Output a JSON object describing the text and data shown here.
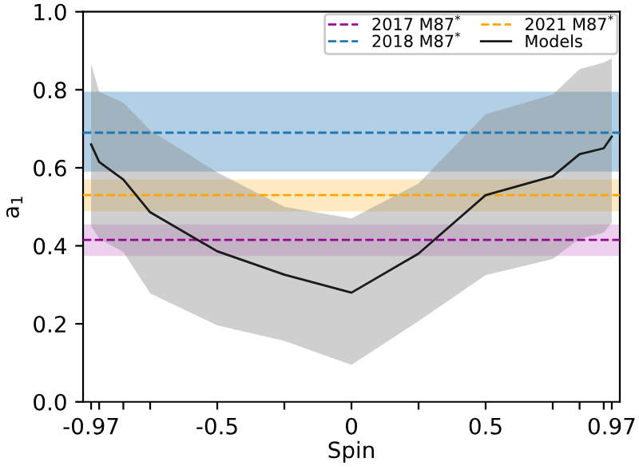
{
  "chart_data": {
    "type": "line",
    "xlabel": "Spin",
    "ylabel": "a$_{1}$",
    "x": [
      -0.97,
      -0.94,
      -0.85,
      -0.75,
      -0.5,
      -0.25,
      0,
      0.25,
      0.5,
      0.75,
      0.85,
      0.94,
      0.97
    ],
    "series": [
      {
        "name": "Models",
        "color": "#1a1a1a",
        "values": [
          0.66,
          0.615,
          0.57,
          0.486,
          0.386,
          0.326,
          0.28,
          0.38,
          0.53,
          0.578,
          0.635,
          0.65,
          0.68
        ],
        "lower": [
          0.45,
          0.418,
          0.384,
          0.278,
          0.196,
          0.156,
          0.095,
          0.207,
          0.325,
          0.366,
          0.418,
          0.434,
          0.46
        ],
        "upper": [
          0.866,
          0.795,
          0.767,
          0.696,
          0.588,
          0.5,
          0.47,
          0.56,
          0.737,
          0.788,
          0.853,
          0.87,
          0.88
        ]
      }
    ],
    "ref_lines": [
      {
        "axis": "y",
        "value": 0.415,
        "label": "2017 M87$^{*}$",
        "color": "#990099",
        "line_style": "dashed"
      },
      {
        "axis": "y",
        "value": 0.69,
        "label": "2018 M87$^{*}$",
        "color": "#1f77b4",
        "line_style": "dashed"
      },
      {
        "axis": "y",
        "value": 0.53,
        "label": "2021 M87$^{*}$",
        "color": "#ffa500",
        "line_style": "dashed"
      }
    ],
    "bands": [
      {
        "axis": "y",
        "from": 0.374,
        "to": 0.455,
        "color": "#cc77cc"
      },
      {
        "axis": "y",
        "from": 0.59,
        "to": 0.795,
        "color": "#1f77b4"
      },
      {
        "axis": "y",
        "from": 0.488,
        "to": 0.57,
        "color": "#ffc04d"
      }
    ],
    "xlim": [
      -1.0,
      1.0
    ],
    "ylim": [
      0,
      1.0
    ],
    "xticks": [
      {
        "value": -0.97,
        "label": "-0.97"
      },
      {
        "value": -0.94,
        "label": null
      },
      {
        "value": -0.85,
        "label": null
      },
      {
        "value": -0.75,
        "label": null
      },
      {
        "value": -0.5,
        "label": "-0.5"
      },
      {
        "value": -0.25,
        "label": null
      },
      {
        "value": 0,
        "label": "0"
      },
      {
        "value": 0.25,
        "label": null
      },
      {
        "value": 0.5,
        "label": "0.5"
      },
      {
        "value": 0.75,
        "label": null
      },
      {
        "value": 0.85,
        "label": null
      },
      {
        "value": 0.94,
        "label": null
      },
      {
        "value": 0.97,
        "label": "0.97"
      }
    ],
    "yticks": [
      {
        "value": 0,
        "label": "0.0"
      },
      0.2,
      0.4,
      0.6,
      0.8,
      {
        "value": 1.0,
        "label": "1.0"
      }
    ],
    "legend": "top right",
    "grid": false
  }
}
